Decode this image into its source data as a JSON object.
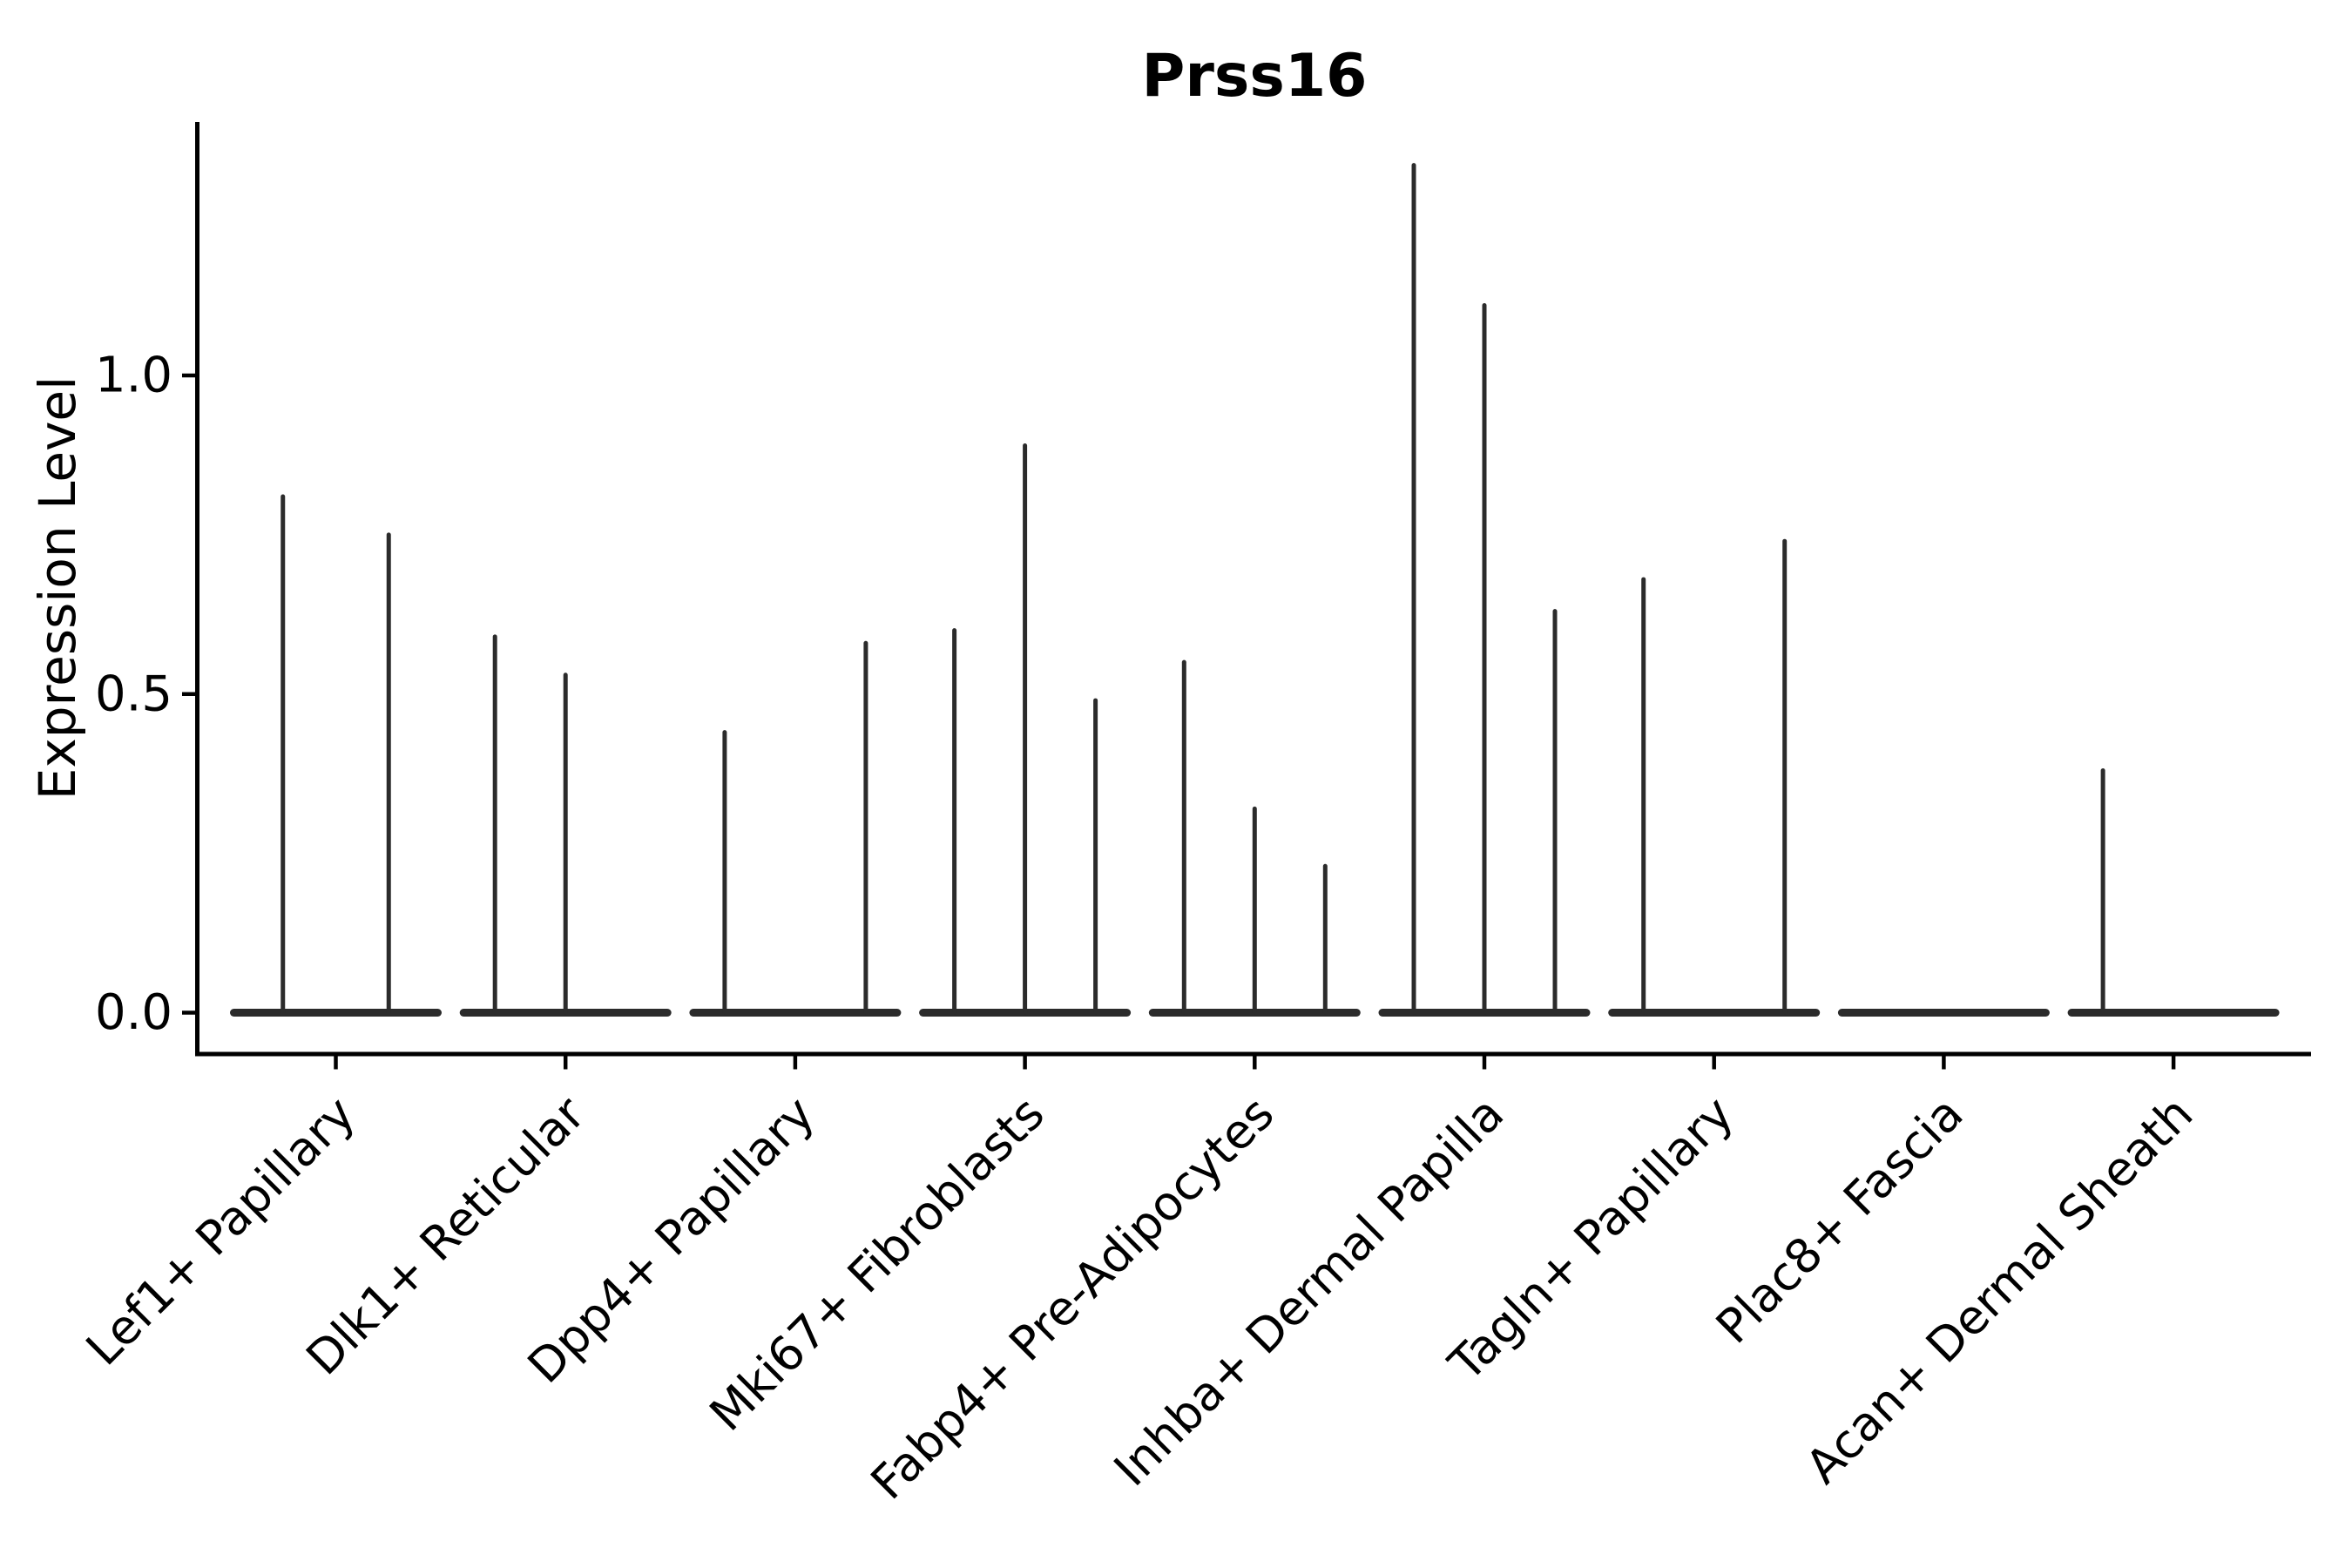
{
  "chart_data": {
    "type": "violin",
    "title": "Prss16",
    "xlabel": "",
    "ylabel": "Expression Level",
    "yticks": [
      0.0,
      0.5,
      1.0
    ],
    "ytick_labels": [
      "0.0",
      "0.5",
      "1.0"
    ],
    "ylim": [
      -0.065,
      1.4
    ],
    "grid": false,
    "legend": "none",
    "note": "Each category holds thin sub-violins; value = max expression (spike top), 0 = flat baseline only",
    "categories": [
      {
        "label": "Lef1+ Papillary",
        "violins": [
          0.81,
          0.75
        ]
      },
      {
        "label": "Dlk1+ Reticular",
        "violins": [
          0.59,
          0.53,
          0
        ]
      },
      {
        "label": "Dpp4+ Papillary",
        "violins": [
          0.44,
          0,
          0.58
        ]
      },
      {
        "label": "Mki67+ Fibroblasts",
        "violins": [
          0.6,
          0.89,
          0.49
        ]
      },
      {
        "label": "Fabp4+ Pre-Adipocytes",
        "violins": [
          0.55,
          0.32,
          0.23
        ]
      },
      {
        "label": "Inhba+ Dermal Papilla",
        "violins": [
          1.33,
          1.11,
          0.63
        ]
      },
      {
        "label": "Tagln+ Papillary",
        "violins": [
          0.68,
          0,
          0.74
        ]
      },
      {
        "label": "Plac8+ Fascia",
        "violins": [
          0,
          0,
          0
        ]
      },
      {
        "label": "Acan+ Dermal Sheath",
        "violins": [
          0.38,
          0,
          0
        ]
      }
    ],
    "colors": {
      "violin": "#2b2b2b",
      "axis": "#000000",
      "text": "#000000",
      "background": "#ffffff"
    }
  }
}
